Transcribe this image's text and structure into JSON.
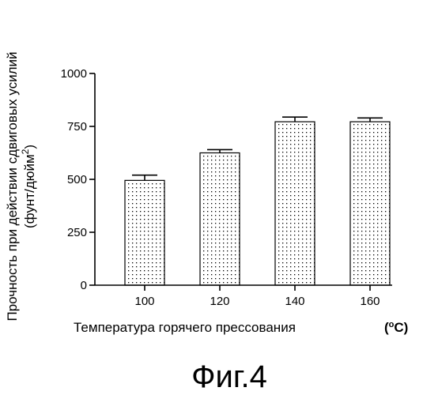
{
  "chart_data": {
    "type": "bar",
    "categories": [
      "100",
      "120",
      "140",
      "160"
    ],
    "values": [
      495,
      625,
      772,
      772
    ],
    "errors": [
      25,
      15,
      22,
      18
    ],
    "ylim": [
      0,
      1000
    ],
    "yticks": [
      "0",
      "250",
      "500",
      "750",
      "1000"
    ],
    "ytick_values": [
      0,
      250,
      500,
      750,
      1000
    ],
    "ylabel_line1": "Прочность при действии сдвиговых усилий",
    "ylabel_line2_prefix": "(фунт/дюйм",
    "ylabel_line2_sup": "2",
    "ylabel_line2_suffix": ")",
    "xlabel": "Температура горячего прессования",
    "xunit_open": "(",
    "xunit_deg": "o",
    "xunit_rest": "C)",
    "bar_fill": "dotted",
    "grid": false,
    "legend": "none"
  },
  "caption": "Фиг.4"
}
